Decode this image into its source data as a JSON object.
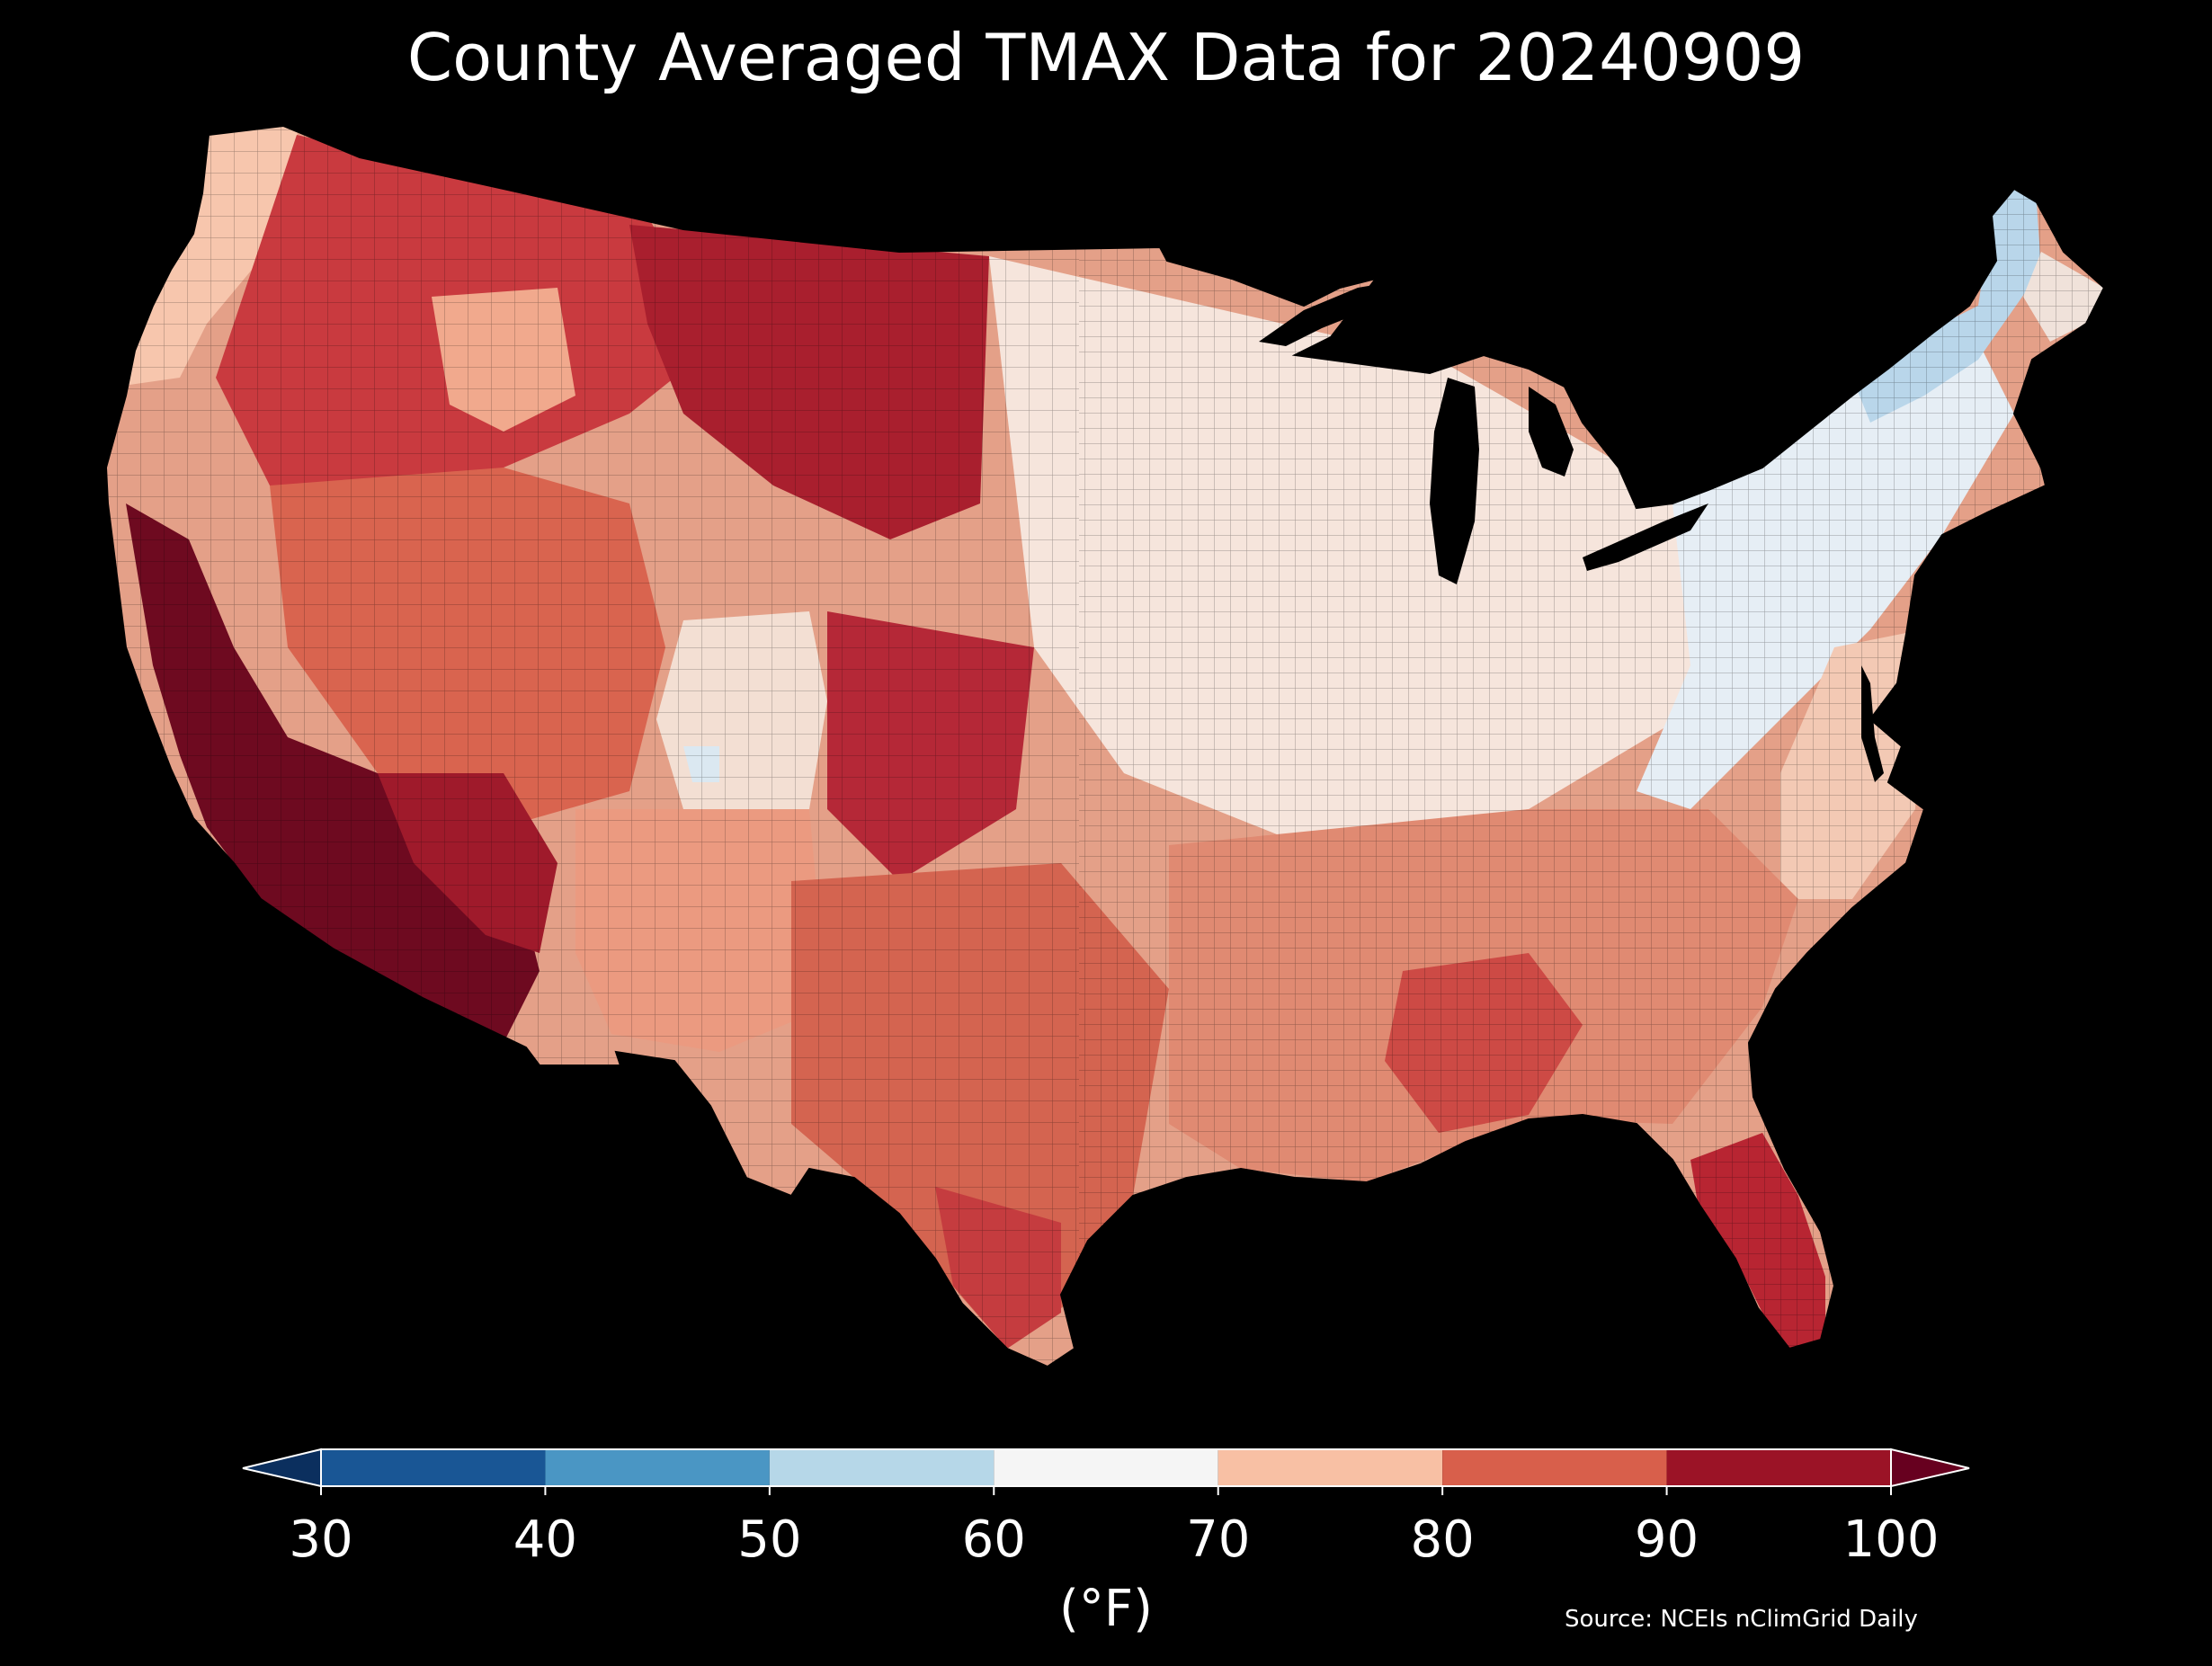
{
  "title": "County Averaged TMAX Data for 20240909",
  "colorbar": {
    "units_label": "(°F)",
    "ticks": [
      "30",
      "40",
      "50",
      "60",
      "70",
      "80",
      "90",
      "100"
    ],
    "bins": [
      {
        "range": [
          30,
          40
        ],
        "color": "#195695"
      },
      {
        "range": [
          40,
          50
        ],
        "color": "#4a96c4"
      },
      {
        "range": [
          50,
          60
        ],
        "color": "#b6d7e8"
      },
      {
        "range": [
          60,
          70
        ],
        "color": "#f5f5f5"
      },
      {
        "range": [
          70,
          80
        ],
        "color": "#f8c0a4"
      },
      {
        "range": [
          80,
          90
        ],
        "color": "#d85f4b"
      },
      {
        "range": [
          90,
          100
        ],
        "color": "#9b1326"
      }
    ],
    "under_color": "#0b2f5e",
    "over_color": "#67001f"
  },
  "source": "Source: NCEIs nClimGrid Daily",
  "map": {
    "subject": "Contiguous United States, county-level maximum temperature",
    "regional_levels": [
      {
        "region": "Pacific Northwest coast",
        "color": "#f7c6ad"
      },
      {
        "region": "Interior Northwest and Northern Rockies",
        "color": "#c93a3f"
      },
      {
        "region": "Northern Plains",
        "color": "#a91f2e"
      },
      {
        "region": "Central Valley / Desert Southwest",
        "color": "#6e0a20"
      },
      {
        "region": "Great Basin",
        "color": "#d9644f"
      },
      {
        "region": "Colorado Rockies",
        "color": "#f3dfd3"
      },
      {
        "region": "Southern Plains / Texas",
        "color": "#d46450"
      },
      {
        "region": "Midwest / Great Lakes",
        "color": "#f6e5dc"
      },
      {
        "region": "Northeast / Appalachians",
        "color": "#e6eef5"
      },
      {
        "region": "Northern New England",
        "color": "#b9d6ea"
      },
      {
        "region": "Southeast / Gulf Coast",
        "color": "#e08a72"
      },
      {
        "region": "Florida peninsula",
        "color": "#b82532"
      }
    ]
  }
}
